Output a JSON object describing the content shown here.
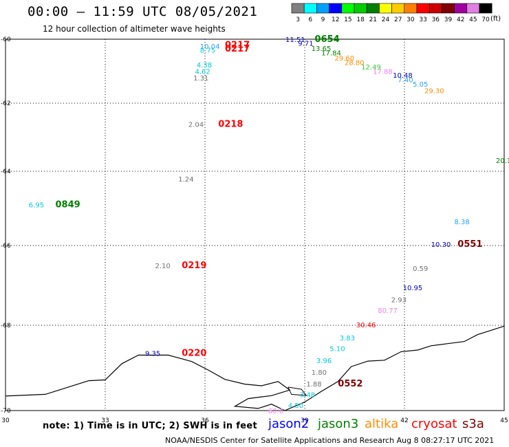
{
  "header": {
    "title": "00:00 – 11:59 UTC 08/05/2021",
    "subtitle": "12 hour collection of altimeter wave heights"
  },
  "legend": {
    "units": "(ft)",
    "bins": [
      {
        "label": "3",
        "color": "#808080"
      },
      {
        "label": "6",
        "color": "#00ffff"
      },
      {
        "label": "9",
        "color": "#00a0ff"
      },
      {
        "label": "12",
        "color": "#0000ff"
      },
      {
        "label": "15",
        "color": "#00ff00"
      },
      {
        "label": "18",
        "color": "#00cc00"
      },
      {
        "label": "21",
        "color": "#008000"
      },
      {
        "label": "24",
        "color": "#ffff00"
      },
      {
        "label": "27",
        "color": "#ffcc00"
      },
      {
        "label": "30",
        "color": "#ff8000"
      },
      {
        "label": "33",
        "color": "#ff0000"
      },
      {
        "label": "36",
        "color": "#cc0000"
      },
      {
        "label": "39",
        "color": "#800000"
      },
      {
        "label": "42",
        "color": "#a000a0"
      },
      {
        "label": "45",
        "color": "#e080e0"
      },
      {
        "label": "70",
        "color": "#000000"
      }
    ]
  },
  "axes": {
    "lon_labels": [
      "30",
      "33",
      "36",
      "39",
      "42",
      "45"
    ],
    "lat_labels": [
      "-60",
      "-62",
      "-64",
      "-66",
      "-68",
      "-70"
    ]
  },
  "colors": {
    "gray": "#707070",
    "cyan": "#00c8d8",
    "lightblue": "#20a0ff",
    "blue": "#0000c0",
    "lgreen": "#33cc33",
    "green": "#008000",
    "yellow": "#c8c800",
    "orange": "#ff8c00",
    "red": "#ff0000",
    "maroon": "#800000",
    "pink": "#ee82ee",
    "black": "#000000"
  },
  "points": [
    {
      "text": "10.04",
      "lon": 35.85,
      "lat": -60.22,
      "color": "lightblue"
    },
    {
      "text": "0217",
      "lon": 36.6,
      "lat": -60.18,
      "color": "red",
      "size": 13,
      "bold": true
    },
    {
      "text": "0217",
      "lon": 36.6,
      "lat": -60.3,
      "color": "red",
      "size": 13,
      "bold": true
    },
    {
      "text": "8.75",
      "lon": 35.85,
      "lat": -60.33,
      "color": "cyan"
    },
    {
      "text": "4.38",
      "lon": 35.75,
      "lat": -60.8,
      "color": "cyan"
    },
    {
      "text": "4.62",
      "lon": 35.7,
      "lat": -61.0,
      "color": "cyan"
    },
    {
      "text": "1.31",
      "lon": 35.65,
      "lat": -61.2,
      "color": "gray"
    },
    {
      "text": "11.51",
      "lon": 38.42,
      "lat": -60.0,
      "color": "blue"
    },
    {
      "text": "0654",
      "lon": 39.3,
      "lat": -60.0,
      "color": "green",
      "size": 13,
      "bold": true
    },
    {
      "text": "9.71",
      "lon": 38.8,
      "lat": -60.12,
      "color": "blue"
    },
    {
      "text": "13.65",
      "lon": 39.2,
      "lat": -60.28,
      "color": "green"
    },
    {
      "text": "17.84",
      "lon": 39.5,
      "lat": -60.42,
      "color": "green"
    },
    {
      "text": "29.60",
      "lon": 39.9,
      "lat": -60.58,
      "color": "orange"
    },
    {
      "text": "28.80",
      "lon": 40.2,
      "lat": -60.72,
      "color": "orange"
    },
    {
      "text": "12.49",
      "lon": 40.7,
      "lat": -60.86,
      "color": "lgreen"
    },
    {
      "text": "17.88",
      "lon": 41.05,
      "lat": -61.0,
      "color": "pink"
    },
    {
      "text": "10.48",
      "lon": 41.65,
      "lat": -61.12,
      "color": "blue"
    },
    {
      "text": "7.40",
      "lon": 41.8,
      "lat": -61.26,
      "color": "lightblue"
    },
    {
      "text": "5.05",
      "lon": 42.25,
      "lat": -61.4,
      "color": "lightblue"
    },
    {
      "text": "29.30",
      "lon": 42.6,
      "lat": -61.6,
      "color": "orange"
    },
    {
      "text": "2.04",
      "lon": 35.5,
      "lat": -62.62,
      "color": "gray"
    },
    {
      "text": "0218",
      "lon": 36.4,
      "lat": -62.62,
      "color": "red",
      "size": 13,
      "bold": true
    },
    {
      "text": "1.24",
      "lon": 35.2,
      "lat": -64.2,
      "color": "gray"
    },
    {
      "text": "20.1",
      "lon": 44.75,
      "lat": -63.68,
      "color": "green"
    },
    {
      "text": "6.95",
      "lon": 30.7,
      "lat": -64.9,
      "color": "cyan"
    },
    {
      "text": "0849",
      "lon": 31.5,
      "lat": -64.9,
      "color": "green",
      "size": 13,
      "bold": true
    },
    {
      "text": "8.38",
      "lon": 43.5,
      "lat": -65.35,
      "color": "lightblue"
    },
    {
      "text": "10.30",
      "lon": 42.8,
      "lat": -65.96,
      "color": "blue"
    },
    {
      "text": "0551",
      "lon": 43.6,
      "lat": -65.96,
      "color": "maroon",
      "size": 13,
      "bold": true
    },
    {
      "text": "2.10",
      "lon": 34.5,
      "lat": -66.5,
      "color": "gray"
    },
    {
      "text": "0219",
      "lon": 35.3,
      "lat": -66.5,
      "color": "red",
      "size": 13,
      "bold": true
    },
    {
      "text": "0.59",
      "lon": 42.25,
      "lat": -66.57,
      "color": "gray"
    },
    {
      "text": "10.95",
      "lon": 41.95,
      "lat": -67.05,
      "color": "blue"
    },
    {
      "text": "2.93",
      "lon": 41.6,
      "lat": -67.35,
      "color": "gray"
    },
    {
      "text": "80.77",
      "lon": 41.2,
      "lat": -67.62,
      "color": "pink"
    },
    {
      "text": "30.46",
      "lon": 40.55,
      "lat": -67.98,
      "color": "red"
    },
    {
      "text": "3.83",
      "lon": 40.05,
      "lat": -68.29,
      "color": "cyan"
    },
    {
      "text": "5.10",
      "lon": 39.75,
      "lat": -68.54,
      "color": "cyan"
    },
    {
      "text": "9.35",
      "lon": 34.2,
      "lat": -68.65,
      "color": "blue"
    },
    {
      "text": "0220",
      "lon": 35.3,
      "lat": -68.65,
      "color": "red",
      "size": 13,
      "bold": true
    },
    {
      "text": "3.96",
      "lon": 39.35,
      "lat": -68.82,
      "color": "cyan"
    },
    {
      "text": "1.80",
      "lon": 39.2,
      "lat": -69.1,
      "color": "gray"
    },
    {
      "text": "1.88",
      "lon": 39.05,
      "lat": -69.37,
      "color": "gray"
    },
    {
      "text": "0552",
      "lon": 40.0,
      "lat": -69.37,
      "color": "maroon",
      "size": 13,
      "bold": true
    },
    {
      "text": "3.48",
      "lon": 38.85,
      "lat": -69.62,
      "color": "cyan"
    },
    {
      "text": "4.50",
      "lon": 38.5,
      "lat": -69.87,
      "color": "cyan"
    },
    {
      "text": "60.0",
      "lon": 37.9,
      "lat": -70.0,
      "color": "pink"
    }
  ],
  "coastline": [
    [
      30,
      -69.66
    ],
    [
      31.2,
      -69.62
    ],
    [
      32.5,
      -69.3
    ],
    [
      33.0,
      -69.28
    ],
    [
      33.5,
      -68.9
    ],
    [
      34.0,
      -68.7
    ],
    [
      34.9,
      -68.7
    ],
    [
      35.6,
      -68.85
    ],
    [
      36.1,
      -69.05
    ],
    [
      36.6,
      -69.27
    ],
    [
      37.2,
      -69.38
    ],
    [
      37.7,
      -69.42
    ],
    [
      38.2,
      -69.32
    ],
    [
      38.55,
      -69.52
    ],
    [
      38.0,
      -69.65
    ],
    [
      37.3,
      -69.72
    ],
    [
      36.9,
      -69.9
    ],
    [
      37.6,
      -69.95
    ],
    [
      38.0,
      -69.85
    ],
    [
      38.4,
      -70.0
    ],
    [
      39.0,
      -69.8
    ],
    [
      39.5,
      -69.55
    ],
    [
      40.0,
      -69.32
    ],
    [
      40.4,
      -68.97
    ],
    [
      40.9,
      -68.84
    ],
    [
      41.4,
      -68.82
    ],
    [
      41.9,
      -68.62
    ],
    [
      42.4,
      -68.58
    ],
    [
      42.8,
      -68.48
    ],
    [
      43.3,
      -68.43
    ],
    [
      43.8,
      -68.38
    ],
    [
      44.2,
      -68.22
    ],
    [
      44.6,
      -68.12
    ],
    [
      45,
      -68.02
    ]
  ],
  "lakes": [
    [
      [
        38.5,
        -69.45
      ],
      [
        38.9,
        -69.5
      ],
      [
        39.05,
        -69.65
      ],
      [
        38.6,
        -69.62
      ],
      [
        38.5,
        -69.45
      ]
    ]
  ],
  "notes": {
    "note": "note:  1) Time is in UTC;  2) SWH is in feet",
    "sat_jason2": "jason2",
    "sat_jason3": "jason3",
    "sat_altika": "altika",
    "sat_cryosat": "cryosat",
    "sat_s3a": "s3a",
    "footer": "NOAA/NESDIS Center for Satellite Applications and Research    Aug  8 08:27:17 UTC 2021"
  }
}
